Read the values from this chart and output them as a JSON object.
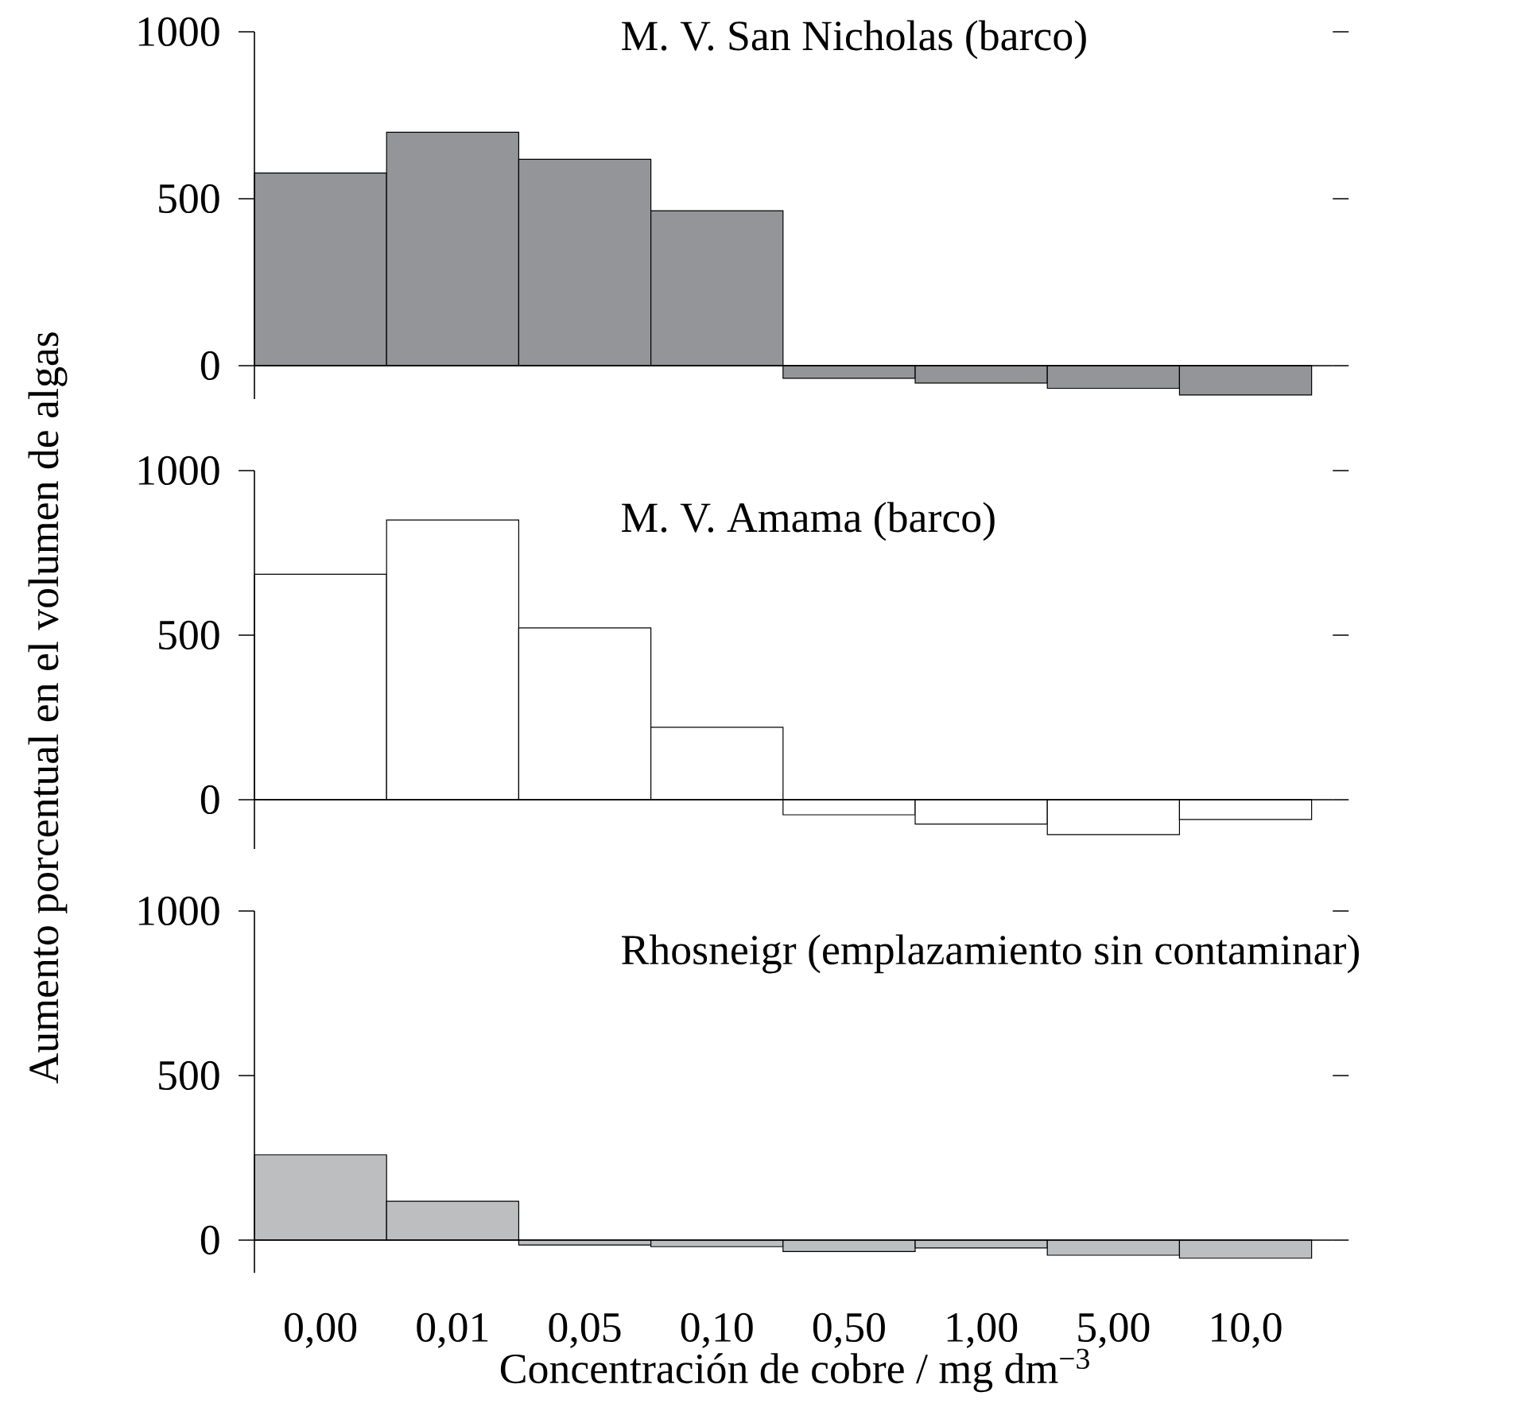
{
  "chart_data": [
    {
      "type": "bar",
      "title": "M. V. San Nicholas (barco)",
      "categories": [
        "0,00",
        "0,01",
        "0,05",
        "0,10",
        "0,50",
        "1,00",
        "5,00",
        "10,0"
      ],
      "values": [
        577,
        699,
        618,
        464,
        -38,
        -52,
        -68,
        -88
      ],
      "color": "#939598",
      "ylim": [
        -100,
        1000
      ],
      "yticks": [
        0,
        500,
        1000
      ],
      "tick_labels": "y"
    },
    {
      "type": "bar",
      "title": "M. V. Amama (barco)",
      "ylabel": "Aumento porcentual en el volumen de algas",
      "categories": [
        "0,00",
        "0,01",
        "0,05",
        "0,10",
        "0,50",
        "1,00",
        "5,00",
        "10,0"
      ],
      "values": [
        685,
        850,
        522,
        220,
        -46,
        -74,
        -106,
        -60
      ],
      "color": "#ffffff",
      "ylim": [
        -150,
        1000
      ],
      "yticks": [
        0,
        500,
        1000
      ],
      "tick_labels": "y"
    },
    {
      "type": "bar",
      "title": "Rhosneigr (emplazamiento sin contaminar)",
      "xlabel": "Concentración de cobre / mg dm$^{−3}$",
      "categories": [
        "0,00",
        "0,01",
        "0,05",
        "0,10",
        "0,50",
        "1,00",
        "5,00",
        "10,0"
      ],
      "values": [
        259,
        118,
        -15,
        -20,
        -35,
        -24,
        -46,
        -55
      ],
      "color": "#bcbec0",
      "ylim": [
        -100,
        1000
      ],
      "yticks": [
        0,
        500,
        1000
      ]
    }
  ]
}
